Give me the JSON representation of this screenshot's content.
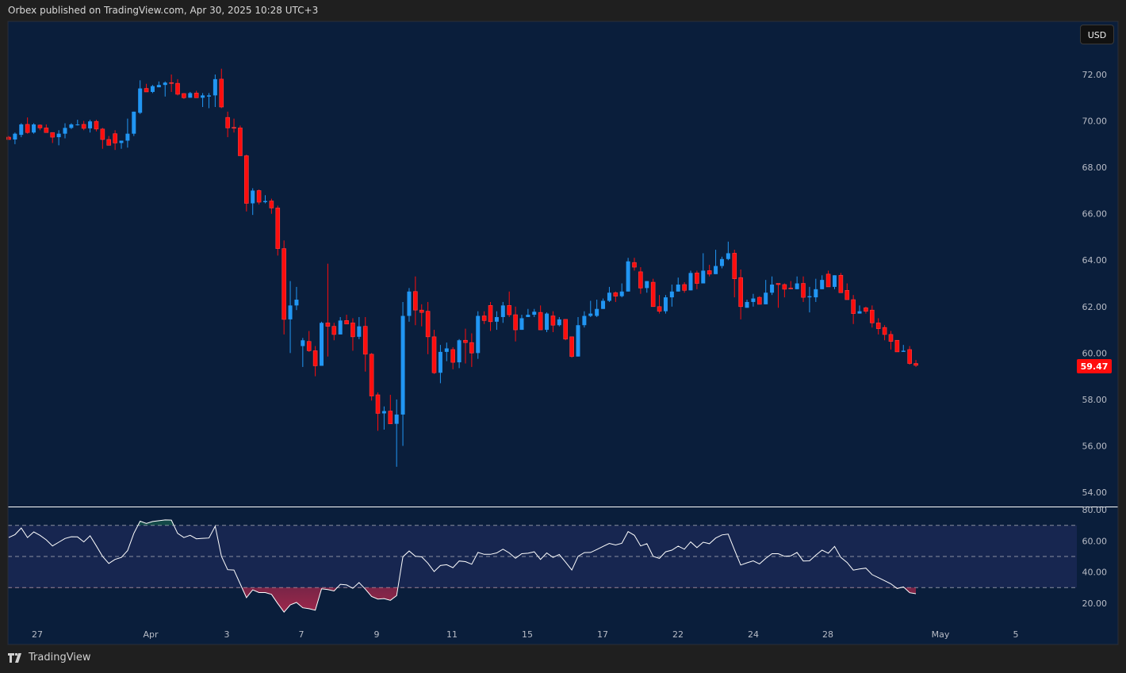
{
  "header": {
    "publisher_line": "Orbex published on TradingView.com, Apr 30, 2025 10:28 UTC+3"
  },
  "currency_button": "USD",
  "footer": {
    "brand": "TradingView",
    "logo_icon": "tradingview-logo-icon"
  },
  "colors": {
    "up": "#2196f3",
    "down": "#ff0d0d",
    "background": "#0a1e3b",
    "rsi_band": "#172650",
    "rsi_line": "#ffffff",
    "last_price": "#ff0d0d"
  },
  "chart_data": [
    {
      "type": "candlestick",
      "interval_per_candle": "4h",
      "y_ticks": [
        "72.00",
        "70.00",
        "68.00",
        "66.00",
        "64.00",
        "62.00",
        "60.00",
        "58.00",
        "56.00",
        "54.00"
      ],
      "ylim": [
        53.5,
        73.2
      ],
      "x_ticks": [
        "27",
        "Apr",
        "3",
        "7",
        "9",
        "11",
        "15",
        "17",
        "22",
        "24",
        "28",
        "May",
        "5"
      ],
      "last_price": "59.47",
      "ohlc_fields": [
        "open",
        "high",
        "low",
        "close"
      ],
      "candles": [
        [
          69.3,
          69.35,
          69.2,
          69.2
        ],
        [
          69.2,
          69.5,
          69.0,
          69.45
        ],
        [
          69.4,
          69.9,
          69.3,
          69.85
        ],
        [
          69.85,
          70.15,
          69.45,
          69.5
        ],
        [
          69.5,
          69.9,
          69.45,
          69.85
        ],
        [
          69.82,
          69.85,
          69.6,
          69.7
        ],
        [
          69.7,
          69.85,
          69.5,
          69.5
        ],
        [
          69.5,
          69.5,
          69.05,
          69.3
        ],
        [
          69.3,
          69.6,
          68.95,
          69.45
        ],
        [
          69.45,
          69.9,
          69.25,
          69.7
        ],
        [
          69.7,
          69.9,
          69.65,
          69.85
        ],
        [
          69.82,
          70.05,
          69.8,
          69.85
        ],
        [
          69.85,
          70.0,
          69.6,
          69.68
        ],
        [
          69.68,
          70.05,
          69.5,
          69.98
        ],
        [
          69.98,
          70.05,
          69.55,
          69.65
        ],
        [
          69.65,
          69.7,
          68.8,
          69.2
        ],
        [
          69.2,
          69.35,
          68.95,
          68.95
        ],
        [
          69.45,
          69.6,
          68.75,
          69.05
        ],
        [
          69.05,
          69.15,
          68.8,
          69.15
        ],
        [
          69.15,
          70.1,
          68.85,
          69.45
        ],
        [
          69.45,
          70.4,
          69.35,
          70.4
        ],
        [
          70.35,
          71.75,
          70.3,
          71.4
        ],
        [
          71.4,
          71.6,
          71.25,
          71.25
        ],
        [
          71.25,
          71.55,
          71.2,
          71.5
        ],
        [
          71.45,
          71.7,
          71.45,
          71.55
        ],
        [
          71.55,
          71.7,
          71.05,
          71.65
        ],
        [
          71.65,
          72.0,
          71.25,
          71.62
        ],
        [
          71.62,
          71.8,
          71.1,
          71.15
        ],
        [
          71.18,
          71.2,
          70.95,
          71.0
        ],
        [
          71.0,
          71.25,
          71.0,
          71.2
        ],
        [
          71.2,
          71.3,
          71.0,
          71.0
        ],
        [
          71.0,
          71.2,
          70.6,
          71.1
        ],
        [
          71.05,
          71.2,
          70.55,
          71.1
        ],
        [
          71.1,
          72.0,
          70.6,
          71.8
        ],
        [
          71.8,
          72.25,
          70.55,
          70.6
        ],
        [
          70.15,
          70.4,
          69.3,
          69.7
        ],
        [
          69.72,
          70.1,
          69.5,
          69.7
        ],
        [
          69.7,
          69.8,
          68.5,
          68.5
        ],
        [
          68.5,
          68.55,
          66.1,
          66.45
        ],
        [
          66.45,
          67.1,
          65.95,
          67.0
        ],
        [
          67.0,
          67.05,
          66.4,
          66.5
        ],
        [
          66.5,
          66.8,
          66.45,
          66.55
        ],
        [
          66.55,
          66.65,
          66.0,
          66.25
        ],
        [
          66.25,
          66.35,
          64.2,
          64.5
        ],
        [
          64.5,
          64.85,
          60.8,
          61.45
        ],
        [
          61.45,
          63.1,
          60.0,
          62.05
        ],
        [
          62.05,
          62.85,
          61.85,
          62.3
        ],
        [
          60.3,
          60.65,
          59.4,
          60.55
        ],
        [
          60.5,
          60.95,
          60.05,
          60.1
        ],
        [
          60.1,
          60.3,
          59.0,
          59.45
        ],
        [
          59.45,
          61.35,
          59.45,
          61.3
        ],
        [
          61.3,
          63.85,
          59.85,
          61.15
        ],
        [
          61.15,
          61.3,
          60.55,
          60.8
        ],
        [
          60.8,
          61.55,
          60.8,
          61.4
        ],
        [
          61.4,
          61.65,
          61.25,
          61.25
        ],
        [
          61.3,
          61.5,
          60.1,
          60.7
        ],
        [
          60.7,
          61.55,
          60.6,
          61.15
        ],
        [
          61.15,
          61.55,
          59.2,
          59.95
        ],
        [
          59.95,
          60.0,
          57.95,
          58.15
        ],
        [
          58.2,
          58.3,
          56.65,
          57.4
        ],
        [
          57.4,
          57.7,
          56.7,
          57.5
        ],
        [
          57.5,
          58.2,
          56.95,
          56.95
        ],
        [
          56.95,
          58.0,
          55.1,
          57.35
        ],
        [
          57.35,
          62.2,
          56.0,
          61.6
        ],
        [
          61.6,
          62.8,
          61.35,
          62.65
        ],
        [
          62.65,
          63.3,
          61.2,
          61.85
        ],
        [
          61.85,
          62.1,
          61.15,
          61.75
        ],
        [
          61.8,
          62.2,
          59.95,
          60.7
        ],
        [
          60.7,
          61.0,
          59.1,
          59.15
        ],
        [
          59.15,
          60.35,
          58.7,
          60.05
        ],
        [
          60.05,
          60.45,
          59.65,
          60.2
        ],
        [
          60.15,
          60.25,
          59.3,
          59.6
        ],
        [
          59.6,
          60.6,
          59.35,
          60.55
        ],
        [
          60.55,
          61.05,
          59.55,
          60.45
        ],
        [
          60.45,
          60.85,
          59.4,
          60.0
        ],
        [
          60.0,
          61.8,
          59.75,
          61.6
        ],
        [
          61.6,
          61.8,
          61.25,
          61.4
        ],
        [
          62.05,
          62.2,
          60.95,
          61.35
        ],
        [
          61.35,
          61.8,
          61.0,
          61.55
        ],
        [
          61.55,
          62.2,
          61.3,
          62.05
        ],
        [
          62.05,
          62.65,
          61.55,
          61.65
        ],
        [
          61.65,
          62.0,
          60.5,
          61.0
        ],
        [
          61.0,
          61.65,
          61.0,
          61.5
        ],
        [
          61.55,
          61.9,
          61.55,
          61.65
        ],
        [
          61.65,
          61.9,
          61.55,
          61.78
        ],
        [
          61.75,
          62.05,
          61.0,
          61.0
        ],
        [
          61.0,
          61.75,
          60.9,
          61.7
        ],
        [
          61.6,
          61.8,
          60.9,
          61.2
        ],
        [
          61.2,
          61.55,
          61.15,
          61.45
        ],
        [
          61.45,
          61.45,
          60.55,
          60.6
        ],
        [
          60.7,
          60.7,
          59.8,
          59.85
        ],
        [
          59.85,
          61.55,
          59.85,
          61.2
        ],
        [
          61.2,
          61.8,
          61.1,
          61.6
        ],
        [
          61.6,
          62.25,
          61.55,
          61.7
        ],
        [
          61.6,
          62.3,
          61.55,
          61.9
        ],
        [
          61.9,
          62.35,
          61.9,
          62.25
        ],
        [
          62.25,
          62.85,
          62.2,
          62.6
        ],
        [
          62.6,
          62.65,
          62.2,
          62.45
        ],
        [
          62.45,
          63.0,
          62.4,
          62.65
        ],
        [
          62.65,
          64.1,
          62.65,
          63.95
        ],
        [
          63.9,
          64.1,
          63.55,
          63.7
        ],
        [
          63.5,
          63.7,
          62.55,
          62.8
        ],
        [
          62.8,
          63.1,
          62.6,
          63.1
        ],
        [
          63.05,
          63.2,
          62.0,
          62.0
        ],
        [
          62.0,
          62.5,
          61.7,
          61.8
        ],
        [
          61.8,
          62.5,
          61.7,
          62.4
        ],
        [
          62.4,
          62.95,
          62.0,
          62.65
        ],
        [
          62.65,
          63.25,
          62.65,
          62.95
        ],
        [
          62.95,
          63.05,
          62.6,
          62.7
        ],
        [
          62.7,
          63.55,
          62.7,
          63.45
        ],
        [
          63.45,
          63.55,
          62.75,
          63.0
        ],
        [
          63.0,
          64.3,
          63.0,
          63.55
        ],
        [
          63.55,
          63.8,
          63.3,
          63.4
        ],
        [
          63.4,
          64.45,
          63.4,
          63.75
        ],
        [
          63.75,
          64.15,
          63.65,
          64.05
        ],
        [
          64.05,
          64.8,
          64.0,
          64.3
        ],
        [
          64.3,
          64.45,
          62.4,
          63.2
        ],
        [
          63.25,
          63.6,
          61.45,
          62.0
        ],
        [
          61.95,
          62.3,
          61.95,
          62.2
        ],
        [
          62.2,
          62.55,
          62.0,
          62.35
        ],
        [
          62.4,
          62.45,
          62.1,
          62.1
        ],
        [
          62.1,
          63.15,
          62.1,
          62.6
        ],
        [
          62.6,
          63.3,
          62.5,
          62.95
        ],
        [
          63.0,
          63.0,
          61.95,
          62.95
        ],
        [
          62.95,
          63.0,
          62.4,
          62.75
        ],
        [
          62.8,
          63.1,
          62.75,
          62.78
        ],
        [
          62.75,
          63.3,
          62.75,
          63.0
        ],
        [
          63.0,
          63.3,
          62.2,
          62.4
        ],
        [
          62.4,
          62.85,
          61.75,
          62.45
        ],
        [
          62.4,
          63.2,
          62.2,
          62.75
        ],
        [
          62.75,
          63.35,
          62.75,
          63.15
        ],
        [
          63.4,
          63.55,
          62.85,
          62.85
        ],
        [
          62.85,
          63.35,
          62.75,
          63.35
        ],
        [
          63.35,
          63.45,
          62.6,
          62.6
        ],
        [
          62.7,
          63.0,
          62.3,
          62.3
        ],
        [
          62.3,
          62.5,
          61.25,
          61.7
        ],
        [
          61.7,
          62.05,
          61.7,
          61.8
        ],
        [
          61.95,
          62.0,
          61.7,
          61.8
        ],
        [
          61.85,
          62.05,
          61.1,
          61.3
        ],
        [
          61.3,
          61.5,
          60.8,
          61.05
        ],
        [
          61.1,
          61.2,
          60.55,
          60.8
        ],
        [
          60.8,
          60.95,
          60.15,
          60.5
        ],
        [
          60.55,
          60.55,
          60.05,
          60.05
        ],
        [
          60.05,
          60.35,
          60.05,
          60.1
        ],
        [
          60.15,
          60.3,
          59.5,
          59.55
        ],
        [
          59.55,
          59.7,
          59.4,
          59.47
        ]
      ]
    },
    {
      "type": "line",
      "y_ticks": [
        "80.00",
        "60.00",
        "40.00",
        "20.00"
      ],
      "ylim": [
        8,
        82
      ],
      "levels": [
        70,
        50,
        30
      ],
      "values": [
        62.2,
        64.1,
        68.3,
        62.2,
        65.8,
        63.6,
        60.7,
        56.8,
        59.2,
        61.6,
        62.7,
        62.6,
        59.4,
        63.3,
        56.8,
        50.1,
        45.5,
        48.1,
        49.4,
        53.8,
        64.9,
        72.7,
        71.3,
        72.5,
        73.0,
        73.5,
        73.4,
        64.9,
        62.2,
        63.6,
        61.4,
        61.7,
        61.9,
        69.5,
        50.1,
        41.5,
        41.3,
        32.4,
        23.5,
        28.5,
        26.8,
        26.8,
        25.6,
        19.7,
        14.2,
        18.9,
        20.4,
        17.0,
        16.4,
        15.4,
        29.2,
        28.7,
        27.8,
        32.1,
        31.7,
        29.5,
        33.2,
        29.0,
        24.3,
        22.6,
        22.9,
        21.8,
        24.8,
        49.8,
        53.5,
        50.1,
        49.8,
        45.7,
        40.3,
        44.2,
        44.7,
        42.8,
        47.1,
        46.7,
        45.0,
        52.6,
        51.4,
        51.4,
        52.3,
        54.7,
        52.3,
        48.9,
        51.8,
        52.1,
        53.0,
        48.1,
        52.3,
        49.4,
        51.3,
        46.4,
        41.3,
        50.1,
        52.5,
        52.6,
        54.5,
        56.5,
        58.4,
        57.4,
        58.5,
        66.0,
        63.6,
        56.8,
        58.2,
        50.1,
        48.8,
        53.0,
        54.1,
        56.7,
        54.7,
        59.4,
        55.7,
        59.2,
        58.2,
        61.9,
        63.9,
        64.4,
        54.3,
        44.5,
        45.9,
        47.2,
        45.2,
        48.8,
        51.8,
        51.8,
        50.1,
        50.4,
        52.6,
        47.1,
        47.2,
        50.8,
        54.1,
        52.1,
        56.5,
        49.4,
        46.1,
        41.2,
        42.0,
        42.5,
        38.3,
        36.4,
        34.4,
        32.4,
        29.4,
        30.4,
        26.7,
        26.0
      ]
    }
  ]
}
